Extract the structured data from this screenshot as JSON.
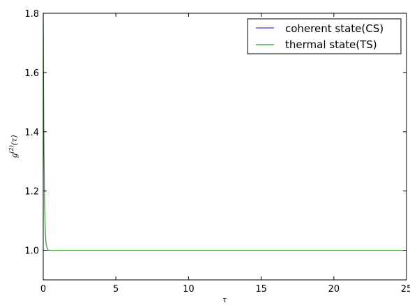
{
  "chart_data": {
    "type": "line",
    "title": "",
    "xlabel": "τ",
    "ylabel": "g^(2)(τ)",
    "ylabel_parts": {
      "base": "g",
      "sup": "(2)",
      "arg": "(τ)"
    },
    "xlim": [
      0,
      25
    ],
    "ylim": [
      0.9,
      1.8
    ],
    "xticks": [
      0,
      5,
      10,
      15,
      20,
      25
    ],
    "xtick_labels": [
      "0",
      "5",
      "10",
      "15",
      "20",
      "25"
    ],
    "yticks": [
      1.0,
      1.2,
      1.4,
      1.6,
      1.8
    ],
    "ytick_labels": [
      "1.0",
      "1.2",
      "1.4",
      "1.6",
      "1.8"
    ],
    "grid": false,
    "legend_position": "top-right",
    "series": [
      {
        "name": "coherent state(CS)",
        "color": "#3333cc",
        "x": [
          0,
          25
        ],
        "y": [
          1.0,
          1.0
        ]
      },
      {
        "name": "thermal state(TS)",
        "color": "#339933",
        "x": [
          0,
          0.02,
          0.05,
          0.08,
          0.1,
          0.15,
          0.2,
          0.3,
          0.4,
          0.5,
          25
        ],
        "y": [
          1.8,
          1.58,
          1.35,
          1.2,
          1.14,
          1.055,
          1.02,
          1.003,
          1.0,
          1.0,
          1.0
        ]
      }
    ]
  }
}
